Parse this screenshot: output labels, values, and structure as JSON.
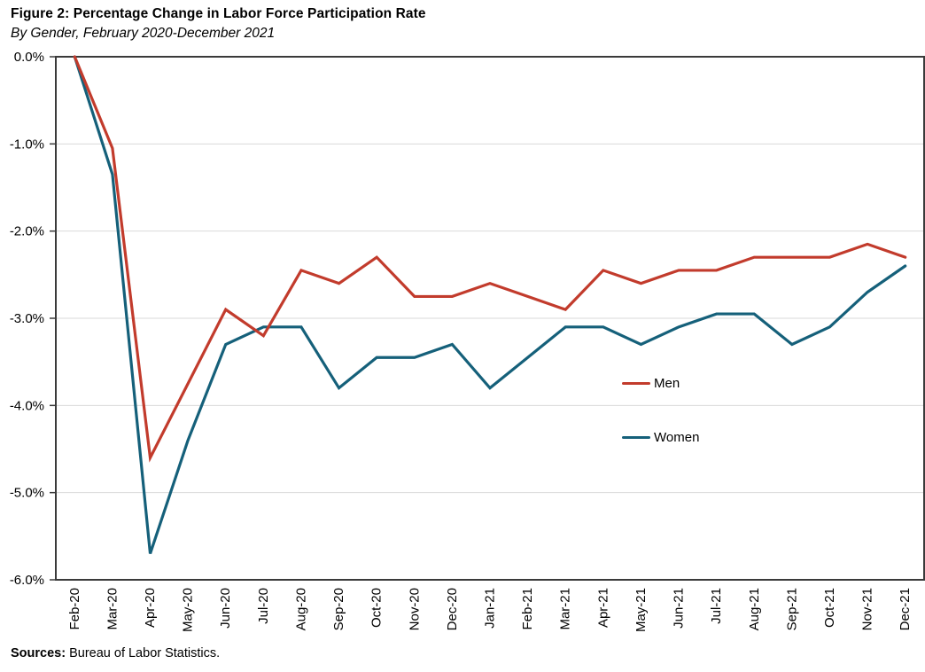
{
  "header": {
    "title": "Figure 2: Percentage Change in Labor Force Participation Rate",
    "subtitle": "By Gender, February 2020-December 2021"
  },
  "footer": {
    "sources_label": "Sources:",
    "sources_text": " Bureau of Labor Statistics."
  },
  "chart_data": {
    "type": "line",
    "title": "Figure 2: Percentage Change in Labor Force Participation Rate",
    "subtitle": "By Gender, February 2020-December 2021",
    "xlabel": "",
    "ylabel": "",
    "ylim": [
      -6.0,
      0.0
    ],
    "grid": "horizontal",
    "legend_position": "inside-right",
    "y_ticks": [
      "0.0%",
      "-1.0%",
      "-2.0%",
      "-3.0%",
      "-4.0%",
      "-5.0%",
      "-6.0%"
    ],
    "y_tick_values": [
      0,
      -1,
      -2,
      -3,
      -4,
      -5,
      -6
    ],
    "categories": [
      "Feb-20",
      "Mar-20",
      "Apr-20",
      "May-20",
      "Jun-20",
      "Jul-20",
      "Aug-20",
      "Sep-20",
      "Oct-20",
      "Nov-20",
      "Dec-20",
      "Jan-21",
      "Feb-21",
      "Mar-21",
      "Apr-21",
      "May-21",
      "Jun-21",
      "Jul-21",
      "Aug-21",
      "Sep-21",
      "Oct-21",
      "Nov-21",
      "Dec-21"
    ],
    "series": [
      {
        "name": "Men",
        "color": "#c23b2c",
        "values": [
          0.0,
          -1.05,
          -4.6,
          -3.75,
          -2.9,
          -3.2,
          -2.45,
          -2.6,
          -2.3,
          -2.75,
          -2.75,
          -2.6,
          -2.75,
          -2.9,
          -2.45,
          -2.6,
          -2.45,
          -2.45,
          -2.3,
          -2.3,
          -2.3,
          -2.15,
          -2.3
        ]
      },
      {
        "name": "Women",
        "color": "#15607a",
        "values": [
          0.0,
          -1.35,
          -5.7,
          -4.4,
          -3.3,
          -3.1,
          -3.1,
          -3.8,
          -3.45,
          -3.45,
          -3.3,
          -3.8,
          -3.45,
          -3.1,
          -3.1,
          -3.3,
          -3.1,
          -2.95,
          -2.95,
          -3.3,
          -3.1,
          -2.7,
          -2.4
        ]
      }
    ],
    "colors": {
      "men_line": "#c23b2c",
      "women_line": "#15607a",
      "gridline": "#d9d9d9",
      "plot_border": "#3a3a3a",
      "text": "#000000"
    }
  }
}
